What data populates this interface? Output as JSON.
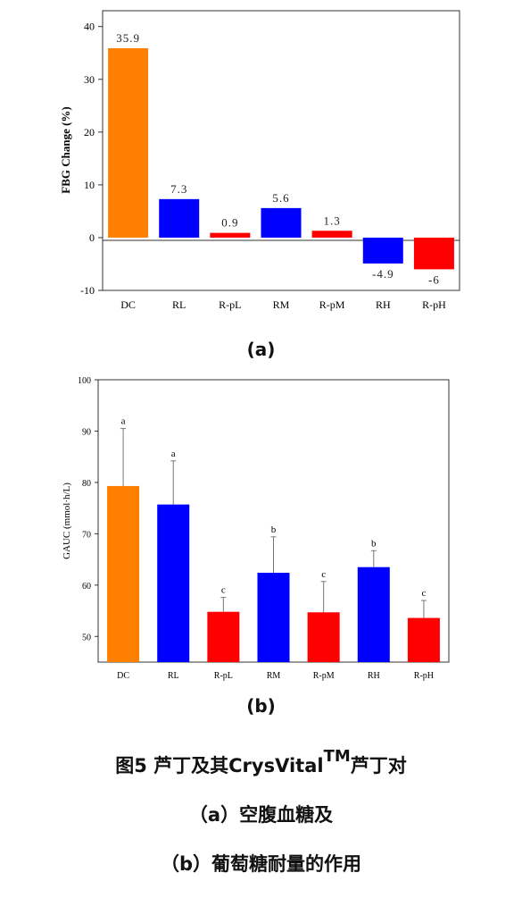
{
  "chart_data": [
    {
      "type": "bar",
      "ylabel": "FBG Change (%)",
      "categories": [
        "DC",
        "RL",
        "R-pL",
        "RM",
        "R-pM",
        "RH",
        "R-pH"
      ],
      "values": [
        35.9,
        7.3,
        0.9,
        5.6,
        1.3,
        -4.9,
        -6
      ],
      "value_labels": [
        "35.9",
        "7.3",
        "0.9",
        "5.6",
        "1.3",
        "-4.9",
        "-6"
      ],
      "colors": [
        "#FF8000",
        "#0000FF",
        "#FF0000",
        "#0000FF",
        "#FF0000",
        "#0000FF",
        "#FF0000"
      ],
      "ylim": [
        -10,
        43
      ],
      "yticks": [
        -10,
        0,
        10,
        20,
        30,
        40
      ],
      "grid": false,
      "panel_label": "(a)"
    },
    {
      "type": "bar",
      "ylabel": "GAUC (mmol·h/L)",
      "categories": [
        "DC",
        "RL",
        "R-pL",
        "RM",
        "R-pM",
        "RH",
        "R-pH"
      ],
      "values": [
        79.3,
        75.7,
        54.8,
        62.4,
        54.7,
        63.5,
        53.6
      ],
      "errors": [
        11.2,
        8.5,
        2.8,
        7.0,
        6.0,
        3.2,
        3.4
      ],
      "significance": [
        "a",
        "a",
        "c",
        "b",
        "c",
        "b",
        "c"
      ],
      "colors": [
        "#FF8000",
        "#0000FF",
        "#FF0000",
        "#0000FF",
        "#FF0000",
        "#0000FF",
        "#FF0000"
      ],
      "ylim": [
        45,
        100
      ],
      "yticks": [
        50,
        60,
        70,
        80,
        90,
        100
      ],
      "grid": false,
      "panel_label": "(b)"
    }
  ],
  "caption": {
    "line1_main": "图5 芦丁及其CrysVital",
    "line1_sup": "TM",
    "line1_tail": "芦丁对",
    "line2": "（a）空腹血糖及",
    "line3": "（b）葡萄糖耐量的作用"
  }
}
